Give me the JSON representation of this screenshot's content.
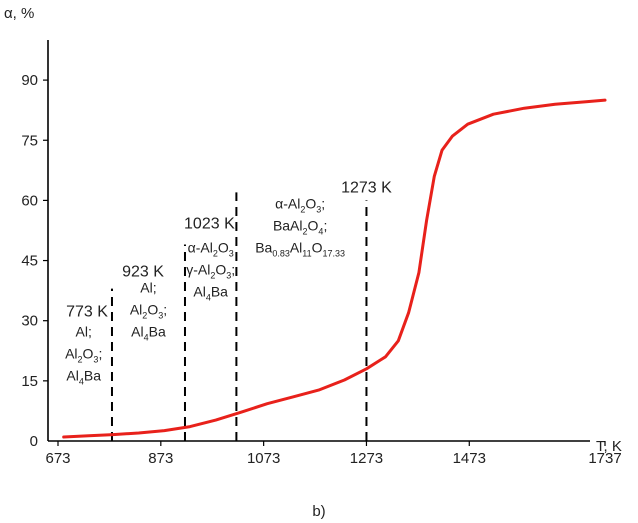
{
  "chart_data": {
    "type": "line",
    "caption": "b)",
    "xlabel": "T, K",
    "ylabel": "α, %",
    "xlim": [
      673,
      1737
    ],
    "ylim": [
      0,
      100
    ],
    "x_ticks": [
      {
        "value": 673,
        "label": "673"
      },
      {
        "value": 873,
        "label": "873"
      },
      {
        "value": 1073,
        "label": "1073"
      },
      {
        "value": 1273,
        "label": "1273"
      },
      {
        "value": 1473,
        "label": "1473"
      },
      {
        "value": 1737,
        "label": "1737"
      }
    ],
    "y_ticks": [
      {
        "value": 0,
        "label": "0"
      },
      {
        "value": 15,
        "label": "15"
      },
      {
        "value": 30,
        "label": "30"
      },
      {
        "value": 45,
        "label": "45"
      },
      {
        "value": 60,
        "label": "60"
      },
      {
        "value": 75,
        "label": "75"
      },
      {
        "value": 90,
        "label": "90"
      }
    ],
    "series": [
      {
        "color": "#e8211b",
        "points": [
          [
            684,
            1.0
          ],
          [
            733,
            1.3
          ],
          [
            780,
            1.6
          ],
          [
            830,
            2.0
          ],
          [
            880,
            2.6
          ],
          [
            930,
            3.6
          ],
          [
            980,
            5.2
          ],
          [
            1030,
            7.2
          ],
          [
            1080,
            9.3
          ],
          [
            1130,
            11.0
          ],
          [
            1180,
            12.7
          ],
          [
            1230,
            15.2
          ],
          [
            1273,
            18.0
          ],
          [
            1310,
            21.0
          ],
          [
            1335,
            25.0
          ],
          [
            1355,
            32.0
          ],
          [
            1375,
            42.0
          ],
          [
            1390,
            55.0
          ],
          [
            1405,
            66.0
          ],
          [
            1420,
            72.5
          ],
          [
            1440,
            76.0
          ],
          [
            1470,
            79.0
          ],
          [
            1520,
            81.5
          ],
          [
            1580,
            83.0
          ],
          [
            1640,
            84.0
          ],
          [
            1700,
            84.6
          ],
          [
            1737,
            85.0
          ]
        ]
      }
    ],
    "boundaries": [
      {
        "x": 778,
        "y_top": 38,
        "label": "773 K",
        "label_y": 31.0
      },
      {
        "x": 920,
        "y_top": 49,
        "label": "923 K",
        "label_y": 41.0
      },
      {
        "x": 1020,
        "y_top": 62,
        "label": "1023 K",
        "label_y": 53.0
      },
      {
        "x": 1273,
        "y_top": 60,
        "label": "1273 K",
        "label_y": 62.0
      }
    ],
    "regions": [
      {
        "x": 723,
        "lines": [
          [
            {
              "t": "Al"
            },
            {
              "t": ";"
            }
          ],
          [
            {
              "t": "Al"
            },
            {
              "t": "2",
              "s": "sub"
            },
            {
              "t": "O"
            },
            {
              "t": "3",
              "s": "sub"
            },
            {
              "t": ";"
            }
          ],
          [
            {
              "t": "Al"
            },
            {
              "t": "4",
              "s": "sub"
            },
            {
              "t": "Ba"
            }
          ]
        ]
      },
      {
        "x": 849,
        "lines": [
          [
            {
              "t": "Al"
            },
            {
              "t": ";"
            }
          ],
          [
            {
              "t": "Al"
            },
            {
              "t": "2",
              "s": "sub"
            },
            {
              "t": "O"
            },
            {
              "t": "3",
              "s": "sub"
            },
            {
              "t": ";"
            }
          ],
          [
            {
              "t": "Al"
            },
            {
              "t": "4",
              "s": "sub"
            },
            {
              "t": "Ba"
            }
          ]
        ]
      },
      {
        "x": 970,
        "lines": [
          [
            {
              "t": "α-Al"
            },
            {
              "t": "2",
              "s": "sub"
            },
            {
              "t": "O"
            },
            {
              "t": "3",
              "s": "sub"
            }
          ],
          [
            {
              "t": "γ-Al"
            },
            {
              "t": "2",
              "s": "sub"
            },
            {
              "t": "O"
            },
            {
              "t": "3",
              "s": "sub"
            },
            {
              "t": ";"
            }
          ],
          [
            {
              "t": "Al"
            },
            {
              "t": "4",
              "s": "sub"
            },
            {
              "t": "Ba"
            }
          ]
        ]
      },
      {
        "x": 1144,
        "lines": [
          [
            {
              "t": "α-Al"
            },
            {
              "t": "2",
              "s": "sub"
            },
            {
              "t": "O"
            },
            {
              "t": "3",
              "s": "sub"
            },
            {
              "t": ";"
            }
          ],
          [
            {
              "t": "BaAl"
            },
            {
              "t": "2",
              "s": "sub"
            },
            {
              "t": "O"
            },
            {
              "t": "4",
              "s": "sub"
            },
            {
              "t": ";"
            }
          ],
          [
            {
              "t": "Ba"
            },
            {
              "t": "0.83",
              "s": "sub"
            },
            {
              "t": "Al"
            },
            {
              "t": "11",
              "s": "sub"
            },
            {
              "t": "O"
            },
            {
              "t": "17.33",
              "s": "sub"
            }
          ]
        ]
      }
    ],
    "grid": false,
    "legend": "none"
  }
}
